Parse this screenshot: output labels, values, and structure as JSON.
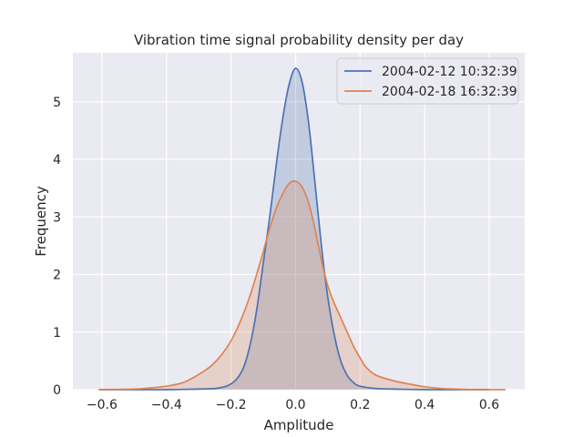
{
  "chart_data": {
    "type": "area",
    "title": "Vibration time signal probability density per day",
    "xlabel": "Amplitude",
    "ylabel": "Frequency",
    "xlim": [
      -0.69,
      0.71
    ],
    "ylim": [
      0,
      5.85
    ],
    "xticks": [
      -0.6,
      -0.4,
      -0.2,
      0.0,
      0.2,
      0.4,
      0.6
    ],
    "xtick_labels": [
      "−0.6",
      "−0.4",
      "−0.2",
      "0.0",
      "0.2",
      "0.4",
      "0.6"
    ],
    "yticks": [
      0,
      1,
      2,
      3,
      4,
      5
    ],
    "ytick_labels": [
      "0",
      "1",
      "2",
      "3",
      "4",
      "5"
    ],
    "grid": true,
    "legend_position": "top-right",
    "series": [
      {
        "name": "2004-02-12 10:32:39",
        "color": "#4c72b0",
        "fill": true,
        "points": [
          [
            -0.61,
            0.0
          ],
          [
            -0.5,
            0.0
          ],
          [
            -0.4,
            0.0
          ],
          [
            -0.3,
            0.01
          ],
          [
            -0.25,
            0.02
          ],
          [
            -0.22,
            0.05
          ],
          [
            -0.2,
            0.1
          ],
          [
            -0.18,
            0.2
          ],
          [
            -0.16,
            0.4
          ],
          [
            -0.14,
            0.8
          ],
          [
            -0.12,
            1.4
          ],
          [
            -0.1,
            2.2
          ],
          [
            -0.08,
            3.0
          ],
          [
            -0.06,
            3.9
          ],
          [
            -0.04,
            4.7
          ],
          [
            -0.02,
            5.3
          ],
          [
            0.0,
            5.58
          ],
          [
            0.02,
            5.35
          ],
          [
            0.04,
            4.65
          ],
          [
            0.06,
            3.6
          ],
          [
            0.08,
            2.5
          ],
          [
            0.1,
            1.6
          ],
          [
            0.12,
            0.95
          ],
          [
            0.14,
            0.5
          ],
          [
            0.16,
            0.25
          ],
          [
            0.18,
            0.12
          ],
          [
            0.2,
            0.06
          ],
          [
            0.25,
            0.02
          ],
          [
            0.3,
            0.01
          ],
          [
            0.4,
            0.0
          ],
          [
            0.5,
            0.0
          ],
          [
            0.6,
            0.0
          ]
        ]
      },
      {
        "name": "2004-02-18 16:32:39",
        "color": "#dd8452",
        "fill": true,
        "points": [
          [
            -0.61,
            0.0
          ],
          [
            -0.5,
            0.01
          ],
          [
            -0.45,
            0.03
          ],
          [
            -0.4,
            0.06
          ],
          [
            -0.35,
            0.12
          ],
          [
            -0.32,
            0.2
          ],
          [
            -0.29,
            0.3
          ],
          [
            -0.26,
            0.42
          ],
          [
            -0.23,
            0.6
          ],
          [
            -0.2,
            0.85
          ],
          [
            -0.17,
            1.2
          ],
          [
            -0.14,
            1.65
          ],
          [
            -0.11,
            2.2
          ],
          [
            -0.08,
            2.8
          ],
          [
            -0.06,
            3.15
          ],
          [
            -0.04,
            3.4
          ],
          [
            -0.02,
            3.58
          ],
          [
            0.0,
            3.62
          ],
          [
            0.02,
            3.52
          ],
          [
            0.04,
            3.25
          ],
          [
            0.06,
            2.8
          ],
          [
            0.08,
            2.25
          ],
          [
            0.1,
            1.8
          ],
          [
            0.12,
            1.5
          ],
          [
            0.14,
            1.25
          ],
          [
            0.16,
            1.0
          ],
          [
            0.18,
            0.75
          ],
          [
            0.2,
            0.55
          ],
          [
            0.22,
            0.38
          ],
          [
            0.25,
            0.25
          ],
          [
            0.3,
            0.16
          ],
          [
            0.35,
            0.1
          ],
          [
            0.4,
            0.05
          ],
          [
            0.45,
            0.02
          ],
          [
            0.5,
            0.01
          ],
          [
            0.55,
            0.0
          ],
          [
            0.65,
            0.0
          ]
        ]
      }
    ]
  }
}
